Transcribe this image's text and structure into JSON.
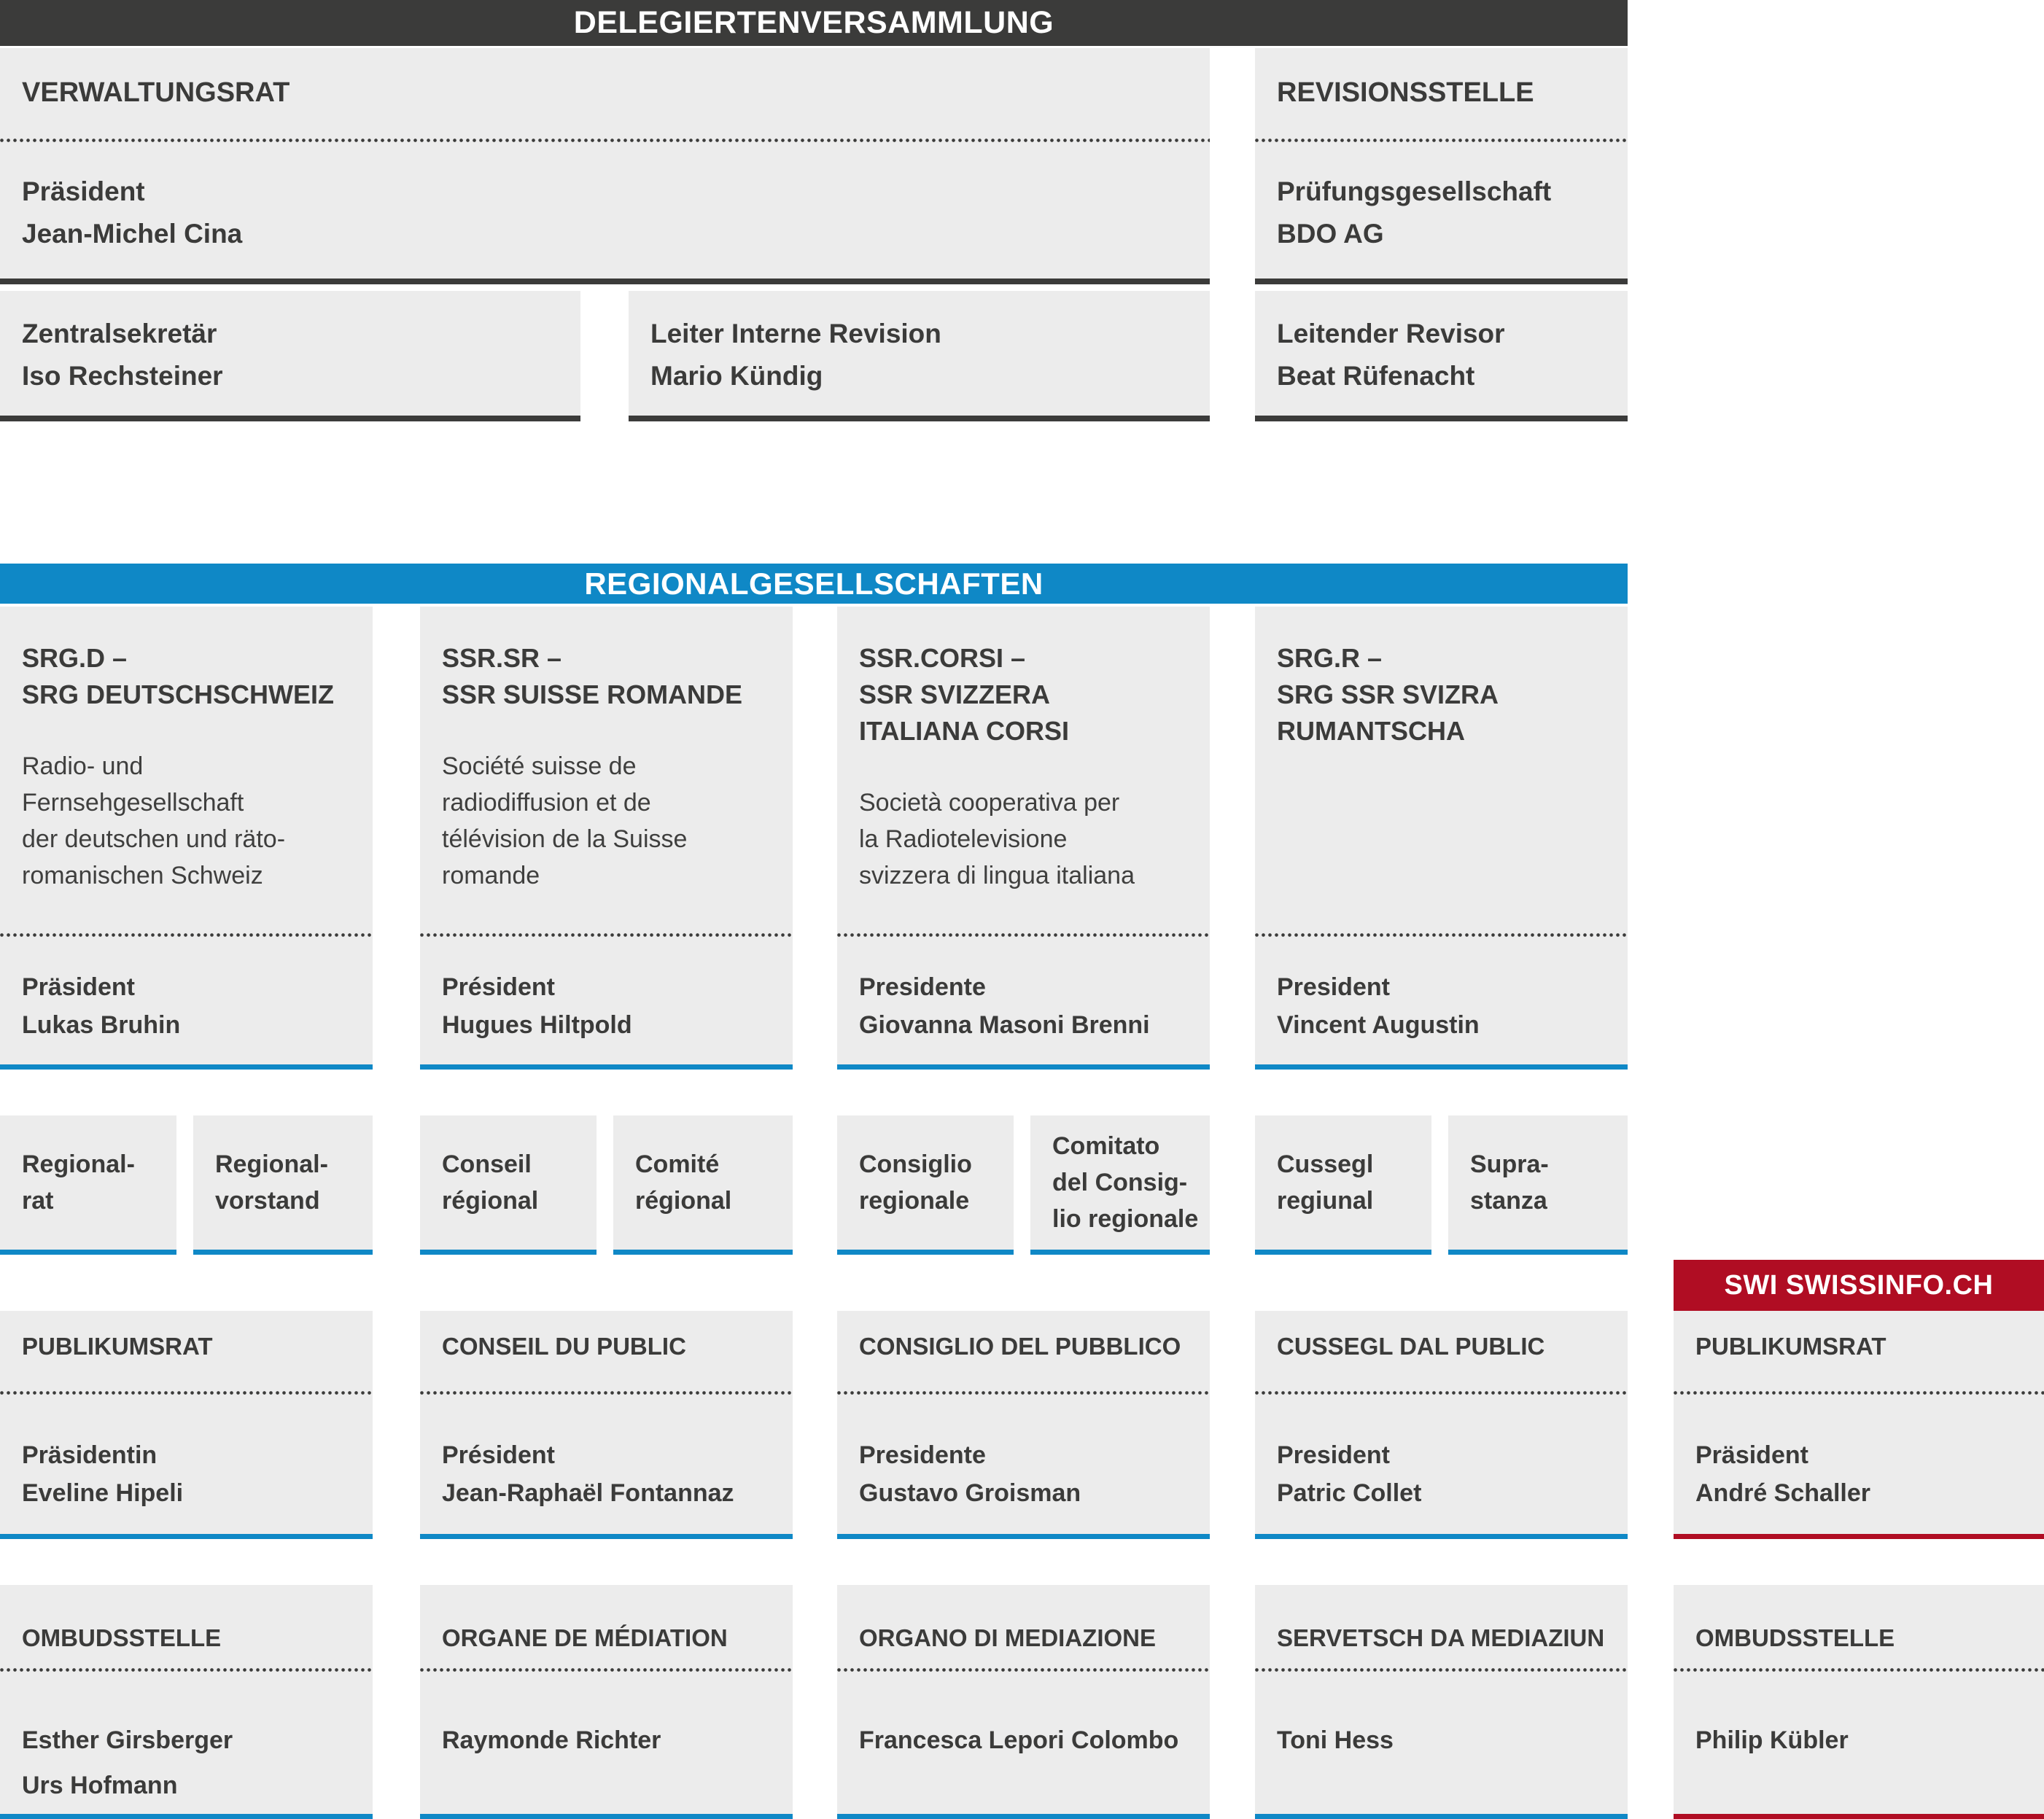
{
  "sections": {
    "delegates_bar": "DELEGIERTENVERSAMMLUNG",
    "regional_bar": "REGIONALGESELLSCHAFTEN",
    "swissinfo_bar": "SWI SWISSINFO.CH"
  },
  "board": {
    "verwaltungsrat": {
      "title": "VERWALTUNGSRAT",
      "detail": "Präsident\nJean-Michel Cina"
    },
    "revisionsstelle": {
      "title": "REVISIONSSTELLE",
      "detail": "Prüfungsgesellschaft\nBDO AG"
    },
    "zentralsekretaer": {
      "detail": "Zentralsekretär\nIso Rechsteiner"
    },
    "interne_revision": {
      "detail": "Leiter Interne Revision\nMario Kündig"
    },
    "leitender_revisor": {
      "detail": "Leitender Revisor\nBeat Rüfenacht"
    }
  },
  "regional_companies": [
    {
      "title": "SRG.D –\nSRG DEUTSCHSCHWEIZ",
      "description": "Radio- und\nFernsehgesellschaft\nder deutschen und räto-\nromanischen Schweiz",
      "president": "Präsident\nLukas Bruhin",
      "councils": [
        "Regional-\nrat",
        "Regional-\nvorstand"
      ],
      "public_council": {
        "title": "PUBLIKUMSRAT",
        "president": "Präsidentin\nEveline Hipeli"
      },
      "ombuds": {
        "title": "OMBUDSSTELLE",
        "names": "Esther Girsberger\nUrs Hofmann"
      }
    },
    {
      "title": "SSR.SR –\nSSR SUISSE ROMANDE",
      "description": "Société suisse de\nradiodiffusion et de\ntélévision de la Suisse\nromande",
      "president": "Président\nHugues Hiltpold",
      "councils": [
        "Conseil\nrégional",
        "Comité\nrégional"
      ],
      "public_council": {
        "title": "CONSEIL DU PUBLIC",
        "president": "Président\nJean-Raphaël Fontannaz"
      },
      "ombuds": {
        "title": "ORGANE DE MÉDIATION",
        "names": "Raymonde Richter"
      }
    },
    {
      "title": "SSR.CORSI –\nSSR SVIZZERA\nITALIANA CORSI",
      "description": "Società cooperativa per\nla Radiotelevisione\nsvizzera di lingua italiana",
      "president": "Presidente\nGiovanna Masoni Brenni",
      "councils": [
        "Consiglio\nregionale",
        "Comitato\ndel Consig-\nlio regionale"
      ],
      "public_council": {
        "title": "CONSIGLIO DEL PUBBLICO",
        "president": "Presidente\nGustavo Groisman"
      },
      "ombuds": {
        "title": "ORGANO DI MEDIAZIONE",
        "names": "Francesca Lepori Colombo"
      }
    },
    {
      "title": "SRG.R –\nSRG SSR SVIZRA\nRUMANTSCHA",
      "description": "",
      "president": "President\nVincent Augustin",
      "councils": [
        "Cussegl\nregiunal",
        "Supra-\nstanza"
      ],
      "public_council": {
        "title": "CUSSEGL DAL PUBLIC",
        "president": "President\nPatric Collet"
      },
      "ombuds": {
        "title": "SERVETSCH DA MEDIAZIUN",
        "names": "Toni Hess"
      }
    }
  ],
  "swissinfo": {
    "public_council": {
      "title": "PUBLIKUMSRAT",
      "president": "Präsident\nAndré Schaller"
    },
    "ombuds": {
      "title": "OMBUDSSTELLE",
      "names": "Philip Kübler"
    }
  },
  "colors": {
    "dark": "#3b3b3a",
    "blue": "#0f88c6",
    "red": "#b00d23",
    "box_bg": "#ececec"
  }
}
